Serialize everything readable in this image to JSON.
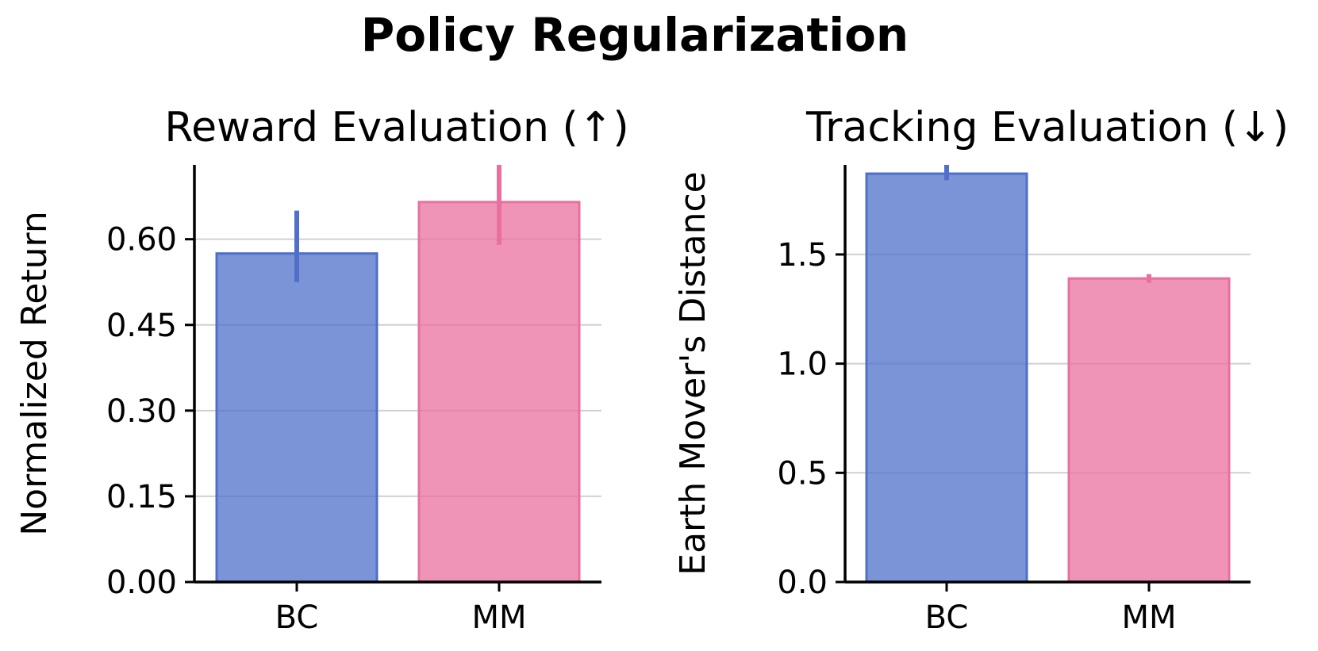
{
  "suptitle": "Policy Regularization",
  "colors": {
    "BC": "#4f6fc9",
    "MM": "#e9709e",
    "grid": "#d0d0d0",
    "axis": "#000000"
  },
  "chart_data": [
    {
      "type": "bar",
      "title": "Reward Evaluation (↑)",
      "xlabel": "",
      "ylabel": "Normalized Return",
      "categories": [
        "BC",
        "MM"
      ],
      "values": [
        0.575,
        0.665
      ],
      "errors": [
        [
          0.525,
          0.65
        ],
        [
          0.59,
          0.73
        ]
      ],
      "ylim": [
        0,
        0.73
      ],
      "yticks": [
        0.0,
        0.15,
        0.3,
        0.45,
        0.6
      ],
      "ytick_labels": [
        "0.00",
        "0.15",
        "0.30",
        "0.45",
        "0.60"
      ],
      "grid": true,
      "legend": false
    },
    {
      "type": "bar",
      "title": "Tracking Evaluation (↓)",
      "xlabel": "",
      "ylabel": "Earth Mover's Distance",
      "categories": [
        "BC",
        "MM"
      ],
      "values": [
        1.87,
        1.39
      ],
      "errors": [
        [
          1.84,
          1.91
        ],
        [
          1.37,
          1.41
        ]
      ],
      "ylim": [
        0,
        1.91
      ],
      "yticks": [
        0.0,
        0.5,
        1.0,
        1.5
      ],
      "ytick_labels": [
        "0.0",
        "0.5",
        "1.0",
        "1.5"
      ],
      "grid": true,
      "legend": false
    }
  ]
}
